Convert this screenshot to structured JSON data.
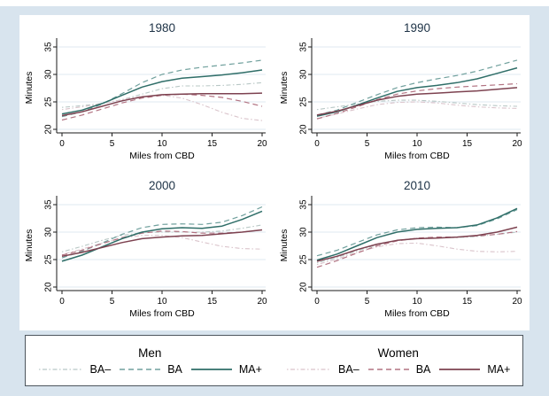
{
  "figure": {
    "background_color": "#d8e4ee",
    "panel_background": "#ffffff",
    "grid_color": "#dfe9f0",
    "axis_color": "#1a1a1a",
    "title_color": "#1d3246",
    "series_colors": {
      "men_ba_minus": "#b9c8c6",
      "men_ba": "#70a09d",
      "men_ma_plus": "#2f6e68",
      "women_ba_minus": "#dac4cb",
      "women_ba": "#b27382",
      "women_ma_plus": "#7d4250"
    }
  },
  "legend": {
    "groups": [
      {
        "label": "Men",
        "entries": [
          {
            "label": "BA–",
            "style": "dotted",
            "color": "#b9c8c6"
          },
          {
            "label": "BA",
            "style": "dashed",
            "color": "#70a09d"
          },
          {
            "label": "MA+",
            "style": "solid",
            "color": "#2f6e68"
          }
        ]
      },
      {
        "label": "Women",
        "entries": [
          {
            "label": "BA–",
            "style": "dotted",
            "color": "#dac4cb"
          },
          {
            "label": "BA",
            "style": "dashed",
            "color": "#b27382"
          },
          {
            "label": "MA+",
            "style": "solid",
            "color": "#7d4250"
          }
        ]
      }
    ]
  },
  "chart_data": [
    {
      "type": "line",
      "title": "1980",
      "xlabel": "Miles from CBD",
      "ylabel": "Minutes",
      "xlim": [
        0,
        20
      ],
      "ylim": [
        20,
        35
      ],
      "xticks": [
        0,
        5,
        10,
        15,
        20
      ],
      "yticks": [
        20,
        25,
        30,
        35
      ],
      "grid": true,
      "x": [
        0,
        2,
        4,
        6,
        8,
        10,
        12,
        14,
        16,
        18,
        20
      ],
      "series": [
        {
          "name": "Men BA-",
          "style": "dotted",
          "color": "#b9c8c6",
          "values": [
            24.0,
            24.3,
            24.7,
            25.4,
            26.4,
            27.4,
            27.9,
            27.9,
            28.0,
            28.2,
            28.5
          ]
        },
        {
          "name": "Women BA-",
          "style": "dotted",
          "color": "#dac4cb",
          "values": [
            23.6,
            24.1,
            24.7,
            25.4,
            26.0,
            26.2,
            25.7,
            24.5,
            23.1,
            22.0,
            21.6
          ]
        },
        {
          "name": "Men BA",
          "style": "dashed",
          "color": "#70a09d",
          "values": [
            22.3,
            23.2,
            24.6,
            26.5,
            28.5,
            30.0,
            30.8,
            31.3,
            31.7,
            32.1,
            32.6
          ]
        },
        {
          "name": "Women BA",
          "style": "dashed",
          "color": "#b27382",
          "values": [
            21.7,
            22.6,
            23.7,
            24.8,
            25.7,
            26.2,
            26.4,
            26.2,
            25.8,
            25.1,
            24.2
          ]
        },
        {
          "name": "Men MA+",
          "style": "solid",
          "color": "#2f6e68",
          "values": [
            22.8,
            23.5,
            24.7,
            26.2,
            27.7,
            28.7,
            29.3,
            29.6,
            29.9,
            30.3,
            30.8
          ]
        },
        {
          "name": "Women MA+",
          "style": "solid",
          "color": "#7d4250",
          "values": [
            22.5,
            23.2,
            24.2,
            25.2,
            25.9,
            26.3,
            26.4,
            26.5,
            26.5,
            26.5,
            26.6
          ]
        }
      ]
    },
    {
      "type": "line",
      "title": "1990",
      "xlabel": "Miles from CBD",
      "ylabel": "Minutes",
      "xlim": [
        0,
        20
      ],
      "ylim": [
        20,
        35
      ],
      "xticks": [
        0,
        5,
        10,
        15,
        20
      ],
      "yticks": [
        20,
        25,
        30,
        35
      ],
      "grid": true,
      "x": [
        0,
        2,
        4,
        6,
        8,
        10,
        12,
        14,
        16,
        18,
        20
      ],
      "series": [
        {
          "name": "Men BA-",
          "style": "dotted",
          "color": "#b9c8c6",
          "values": [
            23.6,
            24.1,
            24.6,
            25.1,
            25.3,
            25.3,
            25.1,
            24.8,
            24.5,
            24.3,
            24.2
          ]
        },
        {
          "name": "Women BA-",
          "style": "dotted",
          "color": "#dac4cb",
          "values": [
            22.0,
            22.8,
            23.7,
            24.5,
            24.9,
            25.0,
            24.8,
            24.4,
            24.1,
            23.9,
            23.8
          ]
        },
        {
          "name": "Men BA",
          "style": "dashed",
          "color": "#70a09d",
          "values": [
            22.6,
            23.5,
            24.9,
            26.3,
            27.6,
            28.5,
            29.2,
            29.8,
            30.6,
            31.6,
            32.6
          ]
        },
        {
          "name": "Women BA",
          "style": "dashed",
          "color": "#b27382",
          "values": [
            21.9,
            22.9,
            24.1,
            25.4,
            26.4,
            27.0,
            27.4,
            27.7,
            27.9,
            28.1,
            28.3
          ]
        },
        {
          "name": "Men MA+",
          "style": "solid",
          "color": "#2f6e68",
          "values": [
            22.4,
            23.2,
            24.4,
            25.7,
            26.9,
            27.6,
            28.0,
            28.5,
            29.2,
            30.2,
            31.2
          ]
        },
        {
          "name": "Women MA+",
          "style": "solid",
          "color": "#7d4250",
          "values": [
            22.6,
            23.3,
            24.3,
            25.3,
            26.0,
            26.4,
            26.6,
            26.8,
            27.0,
            27.3,
            27.6
          ]
        }
      ]
    },
    {
      "type": "line",
      "title": "2000",
      "xlabel": "Miles from CBD",
      "ylabel": "Minutes",
      "xlim": [
        0,
        20
      ],
      "ylim": [
        20,
        35
      ],
      "xticks": [
        0,
        5,
        10,
        15,
        20
      ],
      "yticks": [
        20,
        25,
        30,
        35
      ],
      "grid": true,
      "x": [
        0,
        2,
        4,
        6,
        8,
        10,
        12,
        14,
        16,
        18,
        20
      ],
      "series": [
        {
          "name": "Men BA-",
          "style": "dotted",
          "color": "#b9c8c6",
          "values": [
            26.4,
            27.4,
            28.5,
            29.4,
            29.9,
            30.0,
            30.0,
            30.0,
            30.2,
            30.7,
            31.3
          ]
        },
        {
          "name": "Women BA-",
          "style": "dotted",
          "color": "#dac4cb",
          "values": [
            25.9,
            26.9,
            28.0,
            28.9,
            29.4,
            29.4,
            29.0,
            28.2,
            27.4,
            27.0,
            26.9
          ]
        },
        {
          "name": "Men BA",
          "style": "dashed",
          "color": "#70a09d",
          "values": [
            25.3,
            26.5,
            28.0,
            29.6,
            30.8,
            31.4,
            31.5,
            31.4,
            31.8,
            33.0,
            34.6
          ]
        },
        {
          "name": "Women BA",
          "style": "dashed",
          "color": "#b27382",
          "values": [
            25.8,
            26.7,
            27.9,
            29.0,
            29.8,
            30.2,
            30.1,
            29.8,
            29.8,
            30.0,
            30.4
          ]
        },
        {
          "name": "Men MA+",
          "style": "solid",
          "color": "#2f6e68",
          "values": [
            24.7,
            25.8,
            27.3,
            28.8,
            30.0,
            30.6,
            30.8,
            30.7,
            31.1,
            32.3,
            33.8
          ]
        },
        {
          "name": "Women MA+",
          "style": "solid",
          "color": "#7d4250",
          "values": [
            25.6,
            26.3,
            27.2,
            28.1,
            28.8,
            29.1,
            29.3,
            29.4,
            29.7,
            30.0,
            30.4
          ]
        }
      ]
    },
    {
      "type": "line",
      "title": "2010",
      "xlabel": "Miles from CBD",
      "ylabel": "Minutes",
      "xlim": [
        0,
        20
      ],
      "ylim": [
        20,
        35
      ],
      "xticks": [
        0,
        5,
        10,
        15,
        20
      ],
      "yticks": [
        20,
        25,
        30,
        35
      ],
      "grid": true,
      "x": [
        0,
        2,
        4,
        6,
        8,
        10,
        12,
        14,
        16,
        18,
        20
      ],
      "series": [
        {
          "name": "Men BA-",
          "style": "dotted",
          "color": "#b9c8c6",
          "values": [
            24.4,
            25.4,
            26.6,
            27.7,
            28.5,
            28.9,
            29.0,
            29.0,
            29.2,
            29.6,
            30.0
          ]
        },
        {
          "name": "Women BA-",
          "style": "dotted",
          "color": "#dac4cb",
          "values": [
            24.1,
            25.1,
            26.3,
            27.3,
            27.9,
            28.0,
            27.5,
            26.9,
            26.5,
            26.4,
            26.5
          ]
        },
        {
          "name": "Men BA",
          "style": "dashed",
          "color": "#70a09d",
          "values": [
            25.7,
            26.7,
            28.1,
            29.5,
            30.4,
            30.8,
            30.9,
            30.8,
            31.2,
            32.4,
            34.1
          ]
        },
        {
          "name": "Women BA",
          "style": "dashed",
          "color": "#b27382",
          "values": [
            23.6,
            24.8,
            26.2,
            27.5,
            28.4,
            28.9,
            29.1,
            29.1,
            29.3,
            29.6,
            30.1
          ]
        },
        {
          "name": "Men MA+",
          "style": "solid",
          "color": "#2f6e68",
          "values": [
            24.9,
            26.0,
            27.5,
            29.0,
            30.0,
            30.5,
            30.7,
            30.8,
            31.3,
            32.6,
            34.3
          ]
        },
        {
          "name": "Women MA+",
          "style": "solid",
          "color": "#7d4250",
          "values": [
            24.7,
            25.6,
            26.8,
            27.8,
            28.5,
            28.8,
            28.9,
            29.1,
            29.4,
            30.0,
            30.9
          ]
        }
      ]
    }
  ]
}
